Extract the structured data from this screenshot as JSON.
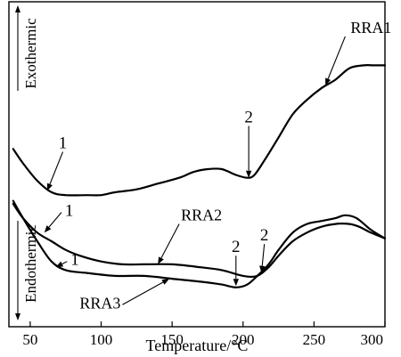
{
  "chart_data": {
    "type": "line",
    "xlabel": "Temperature/°C",
    "xlim": [
      35,
      300
    ],
    "xticks": [
      50,
      100,
      150,
      200,
      250,
      300
    ],
    "ylim": [
      0,
      100
    ],
    "up_label": "Exothermic",
    "down_label": "Endothermic",
    "series": [
      {
        "name": "RRA1",
        "x": [
          38,
          45,
          55,
          65,
          75,
          90,
          100,
          110,
          125,
          140,
          155,
          165,
          175,
          185,
          195,
          203,
          208,
          215,
          225,
          235,
          245,
          255,
          265,
          275,
          285,
          292,
          300
        ],
        "y": [
          57,
          52,
          46,
          42,
          41,
          41,
          41,
          42,
          43,
          45,
          47,
          49,
          50,
          50,
          48,
          47,
          48,
          53,
          61,
          69,
          74,
          78,
          81,
          85,
          86,
          86,
          86
        ]
      },
      {
        "name": "RRA2",
        "x": [
          38,
          45,
          55,
          65,
          75,
          85,
          100,
          115,
          130,
          150,
          170,
          185,
          200,
          210,
          218,
          225,
          235,
          245,
          255,
          265,
          275,
          282,
          290,
          300
        ],
        "y": [
          38,
          33,
          28,
          25,
          22,
          20,
          18,
          17,
          17,
          17,
          16,
          15,
          13,
          13,
          16,
          20,
          25,
          28,
          30,
          31,
          31,
          30,
          28,
          26
        ]
      },
      {
        "name": "RRA3",
        "x": [
          38,
          45,
          55,
          65,
          75,
          90,
          110,
          130,
          150,
          170,
          185,
          195,
          203,
          210,
          218,
          225,
          235,
          245,
          255,
          265,
          272,
          280,
          290,
          300
        ],
        "y": [
          39,
          33,
          25,
          18,
          15,
          14,
          13,
          13,
          12,
          11,
          10,
          9,
          10,
          13,
          17,
          22,
          28,
          31,
          32,
          33,
          34,
          33,
          29,
          26
        ]
      }
    ],
    "annotations": [
      {
        "label": "1",
        "series": "RRA1",
        "x": 62,
        "y": 42.5,
        "tx": 73,
        "ty": 56
      },
      {
        "label": "2",
        "series": "RRA1",
        "x": 204,
        "y": 47,
        "tx": 204,
        "ty": 65
      },
      {
        "label": "RRA1",
        "series": "RRA1",
        "x": 258,
        "y": 79,
        "tx": 272,
        "ty": 96
      },
      {
        "label": "1",
        "series": "RRA2",
        "x": 60,
        "y": 28,
        "tx": 72,
        "ty": 35
      },
      {
        "label": "1",
        "series": "RRA3",
        "x": 68,
        "y": 16,
        "tx": 76,
        "ty": 18
      },
      {
        "label": "RRA2",
        "series": "RRA2",
        "x": 140,
        "y": 17,
        "tx": 155,
        "ty": 31
      },
      {
        "label": "RRA3",
        "series": "RRA3",
        "x": 148,
        "y": 12,
        "tx": 115,
        "ty": 3
      },
      {
        "label": "2",
        "series": "RRA3",
        "x": 195,
        "y": 9.5,
        "tx": 195,
        "ty": 20
      },
      {
        "label": "2",
        "series": "RRA2",
        "x": 213,
        "y": 14,
        "tx": 215,
        "ty": 24
      }
    ]
  }
}
